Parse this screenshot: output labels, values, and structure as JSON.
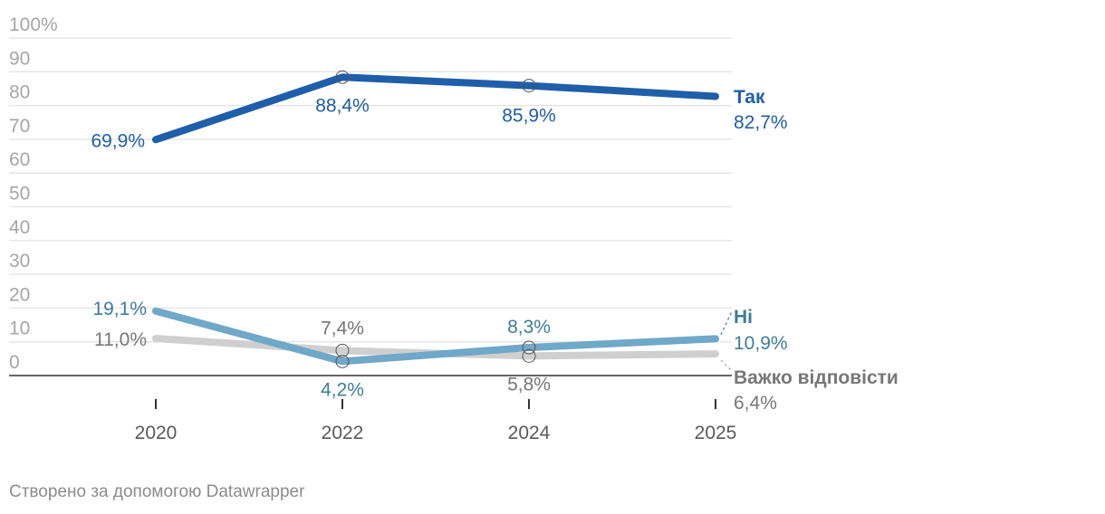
{
  "chart_data": {
    "type": "line",
    "x": [
      "2020",
      "2022",
      "2024",
      "2025"
    ],
    "ylim": [
      0,
      100
    ],
    "y_ticks": [
      "100%",
      "90",
      "80",
      "70",
      "60",
      "50",
      "40",
      "30",
      "20",
      "10",
      "0"
    ],
    "grid": true,
    "series": [
      {
        "name": "Так",
        "color": "#1f5ea8",
        "values": [
          69.9,
          88.4,
          85.9,
          82.7
        ],
        "labels": [
          "69,9%",
          "88,4%",
          "85,9%",
          "82,7%"
        ]
      },
      {
        "name": "Ні",
        "color": "#6fa8c8",
        "label_color": "#3f7c9c",
        "values": [
          19.1,
          4.2,
          8.3,
          10.9
        ],
        "labels": [
          "19,1%",
          "4,2%",
          "8,3%",
          "10,9%"
        ]
      },
      {
        "name": "Важко відповісти",
        "color": "#cfcfcf",
        "label_color": "#777777",
        "values": [
          11.0,
          7.4,
          5.8,
          6.4
        ],
        "labels": [
          "11,0%",
          "7,4%",
          "5,8%",
          "6,4%"
        ]
      }
    ]
  },
  "footer": "Створено за допомогою Datawrapper"
}
